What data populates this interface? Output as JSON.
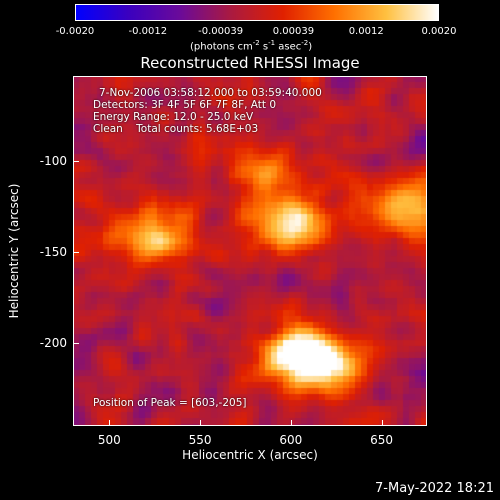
{
  "colorbar": {
    "ticks": [
      "-0.0020",
      "-0.0012",
      "-0.00039",
      "0.00039",
      "0.0012",
      "0.0020"
    ],
    "units_text": "(photons cm",
    "units_exp1": "-2",
    "units_mid": " s",
    "units_exp2": "-1",
    "units_tail": " asec",
    "units_exp3": "-2",
    "units_close": ")",
    "colors": [
      "#0000ff",
      "#3a00c0",
      "#6a0a9a",
      "#aa1a40",
      "#e02000",
      "#ff7000",
      "#ffc040",
      "#ffffff"
    ]
  },
  "title": "Reconstructed RHESSI Image",
  "annotations": {
    "time": "7-Nov-2006 03:58:12.000 to 03:59:40.000",
    "detectors": "Detectors: 3F 4F 5F 6F 7F 8F, Att 0",
    "energy": "Energy Range: 12.0 - 25.0 keV",
    "clean": "Clean    Total counts: 5.68E+03",
    "peak": "Position of Peak = [603,-205]"
  },
  "chart_data": {
    "type": "heatmap",
    "title": "Reconstructed RHESSI Image",
    "xlabel": "Heliocentric X (arcsec)",
    "ylabel": "Heliocentric Y (arcsec)",
    "xticks": [
      "500",
      "550",
      "600",
      "650"
    ],
    "yticks": [
      "-100",
      "-150",
      "-200"
    ],
    "xlim": [
      480,
      675
    ],
    "ylim": [
      -246,
      -53
    ],
    "colorbar_range": [
      -0.002,
      0.002
    ],
    "peak_position": [
      603,
      -205
    ],
    "bright_sources": [
      {
        "x": 603,
        "y": -205,
        "value": 0.002
      },
      {
        "x": 600,
        "y": -135,
        "value": 0.0019
      },
      {
        "x": 660,
        "y": -125,
        "value": 0.0017
      },
      {
        "x": 525,
        "y": -140,
        "value": 0.0015
      },
      {
        "x": 620,
        "y": -215,
        "value": 0.0016
      },
      {
        "x": 585,
        "y": -105,
        "value": 0.0012
      }
    ]
  },
  "datestamp": "7-May-2022 18:21"
}
